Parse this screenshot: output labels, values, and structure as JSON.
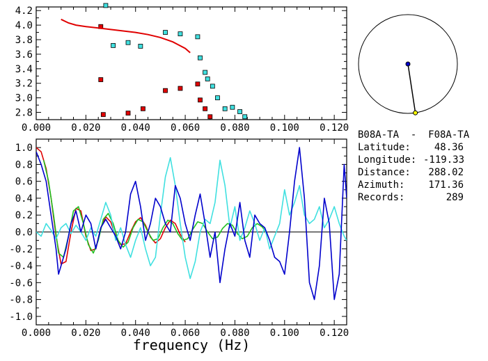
{
  "station": {
    "pair": "B08A-TA  -  F08A-TA",
    "rows": [
      {
        "label": "Latitude:",
        "value": "48.36"
      },
      {
        "label": "Longitude:",
        "value": "-119.33"
      },
      {
        "label": "Distance:",
        "value": "288.02"
      },
      {
        "label": "Azimuth:",
        "value": "171.36"
      },
      {
        "label": "Records:",
        "value": "289"
      }
    ]
  },
  "colors": {
    "red": "#e00000",
    "cyan": "#40e0e0",
    "blue": "#0000cc",
    "green": "#20c020",
    "black": "#000000",
    "yellow": "#ffff00"
  },
  "chart_data": [
    {
      "type": "scatter",
      "xlim": [
        0.0,
        0.125
      ],
      "ylim": [
        2.7,
        4.25
      ],
      "xticks": [
        "0.000",
        "0.020",
        "0.040",
        "0.060",
        "0.080",
        "0.100",
        "0.120"
      ],
      "yticks": [
        "2.8",
        "3.0",
        "3.2",
        "3.4",
        "3.6",
        "3.8",
        "4.0",
        "4.2"
      ],
      "series": [
        {
          "color": "red",
          "marker": "square",
          "points": [
            [
              0.026,
              3.98
            ],
            [
              0.026,
              3.25
            ],
            [
              0.027,
              2.77
            ],
            [
              0.037,
              2.79
            ],
            [
              0.043,
              2.85
            ],
            [
              0.052,
              3.1
            ],
            [
              0.058,
              3.13
            ],
            [
              0.065,
              3.19
            ],
            [
              0.066,
              2.97
            ],
            [
              0.068,
              2.85
            ],
            [
              0.07,
              2.74
            ]
          ]
        },
        {
          "color": "cyan",
          "marker": "square",
          "points": [
            [
              0.028,
              4.27
            ],
            [
              0.031,
              3.72
            ],
            [
              0.037,
              3.76
            ],
            [
              0.042,
              3.71
            ],
            [
              0.052,
              3.9
            ],
            [
              0.058,
              3.88
            ],
            [
              0.065,
              3.84
            ],
            [
              0.066,
              3.55
            ],
            [
              0.068,
              3.35
            ],
            [
              0.069,
              3.26
            ],
            [
              0.071,
              3.16
            ],
            [
              0.073,
              3.0
            ],
            [
              0.076,
              2.85
            ],
            [
              0.079,
              2.87
            ],
            [
              0.082,
              2.81
            ],
            [
              0.084,
              2.74
            ]
          ]
        },
        {
          "color": "red",
          "marker": "line",
          "points": [
            [
              0.01,
              4.08
            ],
            [
              0.013,
              4.03
            ],
            [
              0.016,
              4.0
            ],
            [
              0.02,
              3.98
            ],
            [
              0.025,
              3.96
            ],
            [
              0.03,
              3.94
            ],
            [
              0.035,
              3.92
            ],
            [
              0.04,
              3.9
            ],
            [
              0.045,
              3.87
            ],
            [
              0.05,
              3.83
            ],
            [
              0.055,
              3.77
            ],
            [
              0.06,
              3.68
            ],
            [
              0.062,
              3.62
            ]
          ]
        }
      ]
    },
    {
      "type": "line",
      "xlim": [
        0.0,
        0.125
      ],
      "ylim": [
        -1.1,
        1.1
      ],
      "xlabel": "frequency (Hz)",
      "xticks": [
        "0.000",
        "0.020",
        "0.040",
        "0.060",
        "0.080",
        "0.100",
        "0.120"
      ],
      "yticks": [
        "1.0",
        "0.8",
        "0.6",
        "0.4",
        "0.2",
        "0.0",
        "-0.2",
        "-0.4",
        "-0.6",
        "-0.8",
        "-1.0"
      ],
      "series": [
        {
          "color": "red",
          "points": [
            [
              0.0,
              1.0
            ],
            [
              0.002,
              0.95
            ],
            [
              0.004,
              0.75
            ],
            [
              0.006,
              0.4
            ],
            [
              0.008,
              -0.05
            ],
            [
              0.01,
              -0.38
            ],
            [
              0.012,
              -0.35
            ],
            [
              0.014,
              0.0
            ],
            [
              0.016,
              0.28
            ],
            [
              0.018,
              0.25
            ],
            [
              0.02,
              -0.05
            ],
            [
              0.022,
              -0.22
            ],
            [
              0.024,
              -0.2
            ],
            [
              0.026,
              0.05
            ],
            [
              0.028,
              0.18
            ],
            [
              0.03,
              0.12
            ],
            [
              0.032,
              -0.05
            ],
            [
              0.034,
              -0.15
            ],
            [
              0.036,
              -0.14
            ],
            [
              0.038,
              0.0
            ],
            [
              0.04,
              0.12
            ],
            [
              0.042,
              0.17
            ],
            [
              0.044,
              0.08
            ],
            [
              0.046,
              -0.06
            ],
            [
              0.048,
              -0.13
            ],
            [
              0.05,
              -0.08
            ],
            [
              0.052,
              0.05
            ],
            [
              0.054,
              0.14
            ],
            [
              0.056,
              0.1
            ],
            [
              0.058,
              -0.03
            ],
            [
              0.06,
              -0.12
            ]
          ]
        },
        {
          "color": "green",
          "points": [
            [
              0.003,
              0.85
            ],
            [
              0.005,
              0.6
            ],
            [
              0.007,
              0.2
            ],
            [
              0.009,
              -0.25
            ],
            [
              0.011,
              -0.3
            ],
            [
              0.013,
              -0.05
            ],
            [
              0.015,
              0.25
            ],
            [
              0.017,
              0.3
            ],
            [
              0.019,
              0.1
            ],
            [
              0.021,
              -0.15
            ],
            [
              0.023,
              -0.25
            ],
            [
              0.025,
              -0.1
            ],
            [
              0.027,
              0.15
            ],
            [
              0.029,
              0.22
            ],
            [
              0.031,
              0.1
            ],
            [
              0.033,
              -0.1
            ],
            [
              0.035,
              -0.18
            ],
            [
              0.037,
              -0.12
            ],
            [
              0.039,
              0.05
            ],
            [
              0.041,
              0.15
            ],
            [
              0.043,
              0.12
            ],
            [
              0.045,
              0.0
            ],
            [
              0.047,
              -0.1
            ],
            [
              0.049,
              -0.08
            ],
            [
              0.051,
              0.05
            ],
            [
              0.053,
              0.14
            ],
            [
              0.055,
              0.1
            ],
            [
              0.057,
              -0.02
            ],
            [
              0.059,
              -0.1
            ],
            [
              0.061,
              -0.08
            ],
            [
              0.063,
              0.03
            ],
            [
              0.065,
              0.12
            ],
            [
              0.067,
              0.1
            ],
            [
              0.069,
              0.0
            ],
            [
              0.071,
              -0.08
            ],
            [
              0.073,
              -0.06
            ],
            [
              0.075,
              0.04
            ],
            [
              0.077,
              0.1
            ],
            [
              0.079,
              0.08
            ],
            [
              0.081,
              -0.02
            ],
            [
              0.083,
              -0.08
            ],
            [
              0.085,
              -0.05
            ],
            [
              0.087,
              0.05
            ],
            [
              0.089,
              0.1
            ],
            [
              0.091,
              0.06
            ],
            [
              0.093,
              -0.02
            ]
          ]
        },
        {
          "color": "cyan",
          "points": [
            [
              0.0,
              0.0
            ],
            [
              0.002,
              -0.05
            ],
            [
              0.004,
              0.1
            ],
            [
              0.006,
              0.02
            ],
            [
              0.008,
              -0.08
            ],
            [
              0.01,
              0.05
            ],
            [
              0.012,
              0.1
            ],
            [
              0.014,
              -0.02
            ],
            [
              0.016,
              0.08
            ],
            [
              0.018,
              0.0
            ],
            [
              0.02,
              -0.1
            ],
            [
              0.022,
              0.05
            ],
            [
              0.024,
              -0.05
            ],
            [
              0.026,
              0.15
            ],
            [
              0.028,
              0.35
            ],
            [
              0.03,
              0.2
            ],
            [
              0.032,
              -0.1
            ],
            [
              0.034,
              0.05
            ],
            [
              0.036,
              -0.15
            ],
            [
              0.038,
              -0.3
            ],
            [
              0.04,
              -0.1
            ],
            [
              0.042,
              0.05
            ],
            [
              0.044,
              -0.2
            ],
            [
              0.046,
              -0.4
            ],
            [
              0.048,
              -0.3
            ],
            [
              0.05,
              0.2
            ],
            [
              0.052,
              0.65
            ],
            [
              0.054,
              0.88
            ],
            [
              0.056,
              0.55
            ],
            [
              0.058,
              0.1
            ],
            [
              0.06,
              -0.3
            ],
            [
              0.062,
              -0.55
            ],
            [
              0.064,
              -0.35
            ],
            [
              0.066,
              0.0
            ],
            [
              0.068,
              0.15
            ],
            [
              0.07,
              0.1
            ],
            [
              0.072,
              0.35
            ],
            [
              0.074,
              0.85
            ],
            [
              0.076,
              0.55
            ],
            [
              0.078,
              0.05
            ],
            [
              0.08,
              0.3
            ],
            [
              0.082,
              -0.1
            ],
            [
              0.084,
              0.05
            ],
            [
              0.086,
              0.25
            ],
            [
              0.088,
              0.1
            ],
            [
              0.09,
              -0.1
            ],
            [
              0.092,
              0.05
            ],
            [
              0.094,
              -0.2
            ],
            [
              0.096,
              -0.05
            ],
            [
              0.098,
              0.1
            ],
            [
              0.1,
              0.5
            ],
            [
              0.102,
              0.2
            ],
            [
              0.104,
              0.35
            ],
            [
              0.106,
              0.55
            ],
            [
              0.108,
              0.2
            ],
            [
              0.11,
              0.1
            ],
            [
              0.112,
              0.15
            ],
            [
              0.114,
              0.3
            ],
            [
              0.116,
              0.05
            ],
            [
              0.118,
              0.15
            ],
            [
              0.12,
              0.3
            ],
            [
              0.122,
              0.1
            ],
            [
              0.124,
              -0.05
            ],
            [
              0.125,
              -0.1
            ]
          ]
        },
        {
          "color": "blue",
          "points": [
            [
              0.0,
              0.95
            ],
            [
              0.002,
              0.8
            ],
            [
              0.004,
              0.6
            ],
            [
              0.006,
              0.2
            ],
            [
              0.008,
              -0.2
            ],
            [
              0.009,
              -0.5
            ],
            [
              0.01,
              -0.4
            ],
            [
              0.012,
              -0.2
            ],
            [
              0.014,
              0.1
            ],
            [
              0.016,
              0.25
            ],
            [
              0.018,
              0.0
            ],
            [
              0.02,
              0.2
            ],
            [
              0.022,
              0.1
            ],
            [
              0.024,
              -0.2
            ],
            [
              0.026,
              0.05
            ],
            [
              0.028,
              0.15
            ],
            [
              0.03,
              0.05
            ],
            [
              0.032,
              -0.05
            ],
            [
              0.034,
              -0.2
            ],
            [
              0.036,
              0.0
            ],
            [
              0.038,
              0.45
            ],
            [
              0.04,
              0.6
            ],
            [
              0.042,
              0.3
            ],
            [
              0.044,
              -0.1
            ],
            [
              0.046,
              0.1
            ],
            [
              0.048,
              0.4
            ],
            [
              0.05,
              0.3
            ],
            [
              0.052,
              0.1
            ],
            [
              0.054,
              0.0
            ],
            [
              0.056,
              0.55
            ],
            [
              0.058,
              0.4
            ],
            [
              0.06,
              0.1
            ],
            [
              0.062,
              -0.1
            ],
            [
              0.064,
              0.2
            ],
            [
              0.066,
              0.45
            ],
            [
              0.068,
              0.1
            ],
            [
              0.07,
              -0.3
            ],
            [
              0.072,
              0.0
            ],
            [
              0.074,
              -0.6
            ],
            [
              0.076,
              -0.2
            ],
            [
              0.078,
              0.1
            ],
            [
              0.08,
              -0.05
            ],
            [
              0.082,
              0.35
            ],
            [
              0.084,
              -0.1
            ],
            [
              0.086,
              -0.3
            ],
            [
              0.088,
              0.2
            ],
            [
              0.09,
              0.1
            ],
            [
              0.092,
              0.05
            ],
            [
              0.094,
              -0.1
            ],
            [
              0.096,
              -0.3
            ],
            [
              0.098,
              -0.35
            ],
            [
              0.1,
              -0.5
            ],
            [
              0.102,
              0.0
            ],
            [
              0.104,
              0.6
            ],
            [
              0.106,
              1.0
            ],
            [
              0.108,
              0.4
            ],
            [
              0.11,
              -0.6
            ],
            [
              0.112,
              -0.8
            ],
            [
              0.114,
              -0.4
            ],
            [
              0.116,
              0.4
            ],
            [
              0.118,
              0.1
            ],
            [
              0.12,
              -0.8
            ],
            [
              0.122,
              -0.5
            ],
            [
              0.124,
              0.8
            ],
            [
              0.125,
              0.4
            ]
          ]
        }
      ]
    },
    {
      "type": "polar",
      "azimuth_deg": 171.36,
      "center_color": "blue",
      "end_color": "yellow"
    }
  ]
}
